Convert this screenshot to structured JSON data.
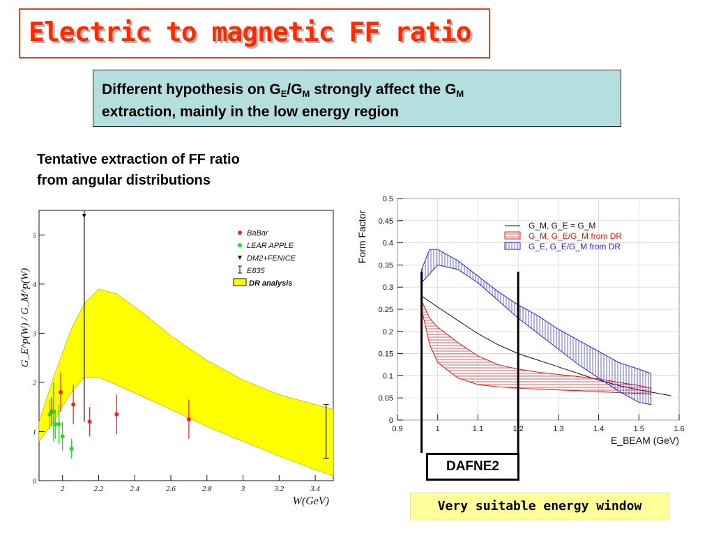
{
  "slide": {
    "title": "Electric to magnetic FF ratio",
    "info": {
      "prefix": "Different hypothesis on G",
      "sub1": "E",
      "mid": "/G",
      "sub2": "M",
      "mid2": " strongly affect the G",
      "sub3": "M",
      "line2": "extraction, mainly in the low energy region"
    },
    "caption": {
      "line1": "Tentative extraction of FF ratio",
      "line2": "from angular distributions"
    },
    "dafne_label": "DAFNE2",
    "window_label": "Very suitable energy window"
  },
  "colors": {
    "title": "#ff2a00",
    "info_bg": "#b5dede",
    "band": "#ffff00",
    "highlight": "#ffff99"
  },
  "chart_data": [
    {
      "type": "scatter",
      "ylabel": "G_E^p(W) / G_M^p(W)",
      "xlabel": "W(GeV)",
      "xlim": [
        1.87,
        3.5
      ],
      "ylim": [
        0,
        5.5
      ],
      "x_ticks": [
        "2",
        "2.2",
        "2.4",
        "2.6",
        "2.8",
        "3",
        "3.2",
        "3.4"
      ],
      "y_ticks": [
        "0",
        "1",
        "2",
        "3",
        "4",
        "5"
      ],
      "legend": [
        "BaBar",
        "LEAR APPLE",
        "DM2+FENICE",
        "E835",
        "DR analysis"
      ],
      "series": [
        {
          "name": "BaBar",
          "color": "#ff2020",
          "points": [
            {
              "x": 1.94,
              "y": 1.4,
              "err": 0.3
            },
            {
              "x": 1.99,
              "y": 1.8,
              "err": 0.4
            },
            {
              "x": 2.06,
              "y": 1.55,
              "err": 0.4
            },
            {
              "x": 2.15,
              "y": 1.2,
              "err": 0.3
            },
            {
              "x": 2.3,
              "y": 1.35,
              "err": 0.4
            },
            {
              "x": 2.7,
              "y": 1.25,
              "err": 0.4
            }
          ]
        },
        {
          "name": "LEAR APPLE",
          "color": "#22dd22",
          "points": [
            {
              "x": 1.93,
              "y": 1.35,
              "err": 0.3
            },
            {
              "x": 1.95,
              "y": 1.4,
              "err": 0.6
            },
            {
              "x": 1.96,
              "y": 1.15,
              "err": 0.3
            },
            {
              "x": 1.98,
              "y": 1.15,
              "err": 0.4
            },
            {
              "x": 2.0,
              "y": 0.9,
              "err": 0.3
            },
            {
              "x": 2.05,
              "y": 0.65,
              "err": 0.2
            }
          ]
        },
        {
          "name": "DM2+FENICE",
          "color": "#111111",
          "points": [
            {
              "x": 2.12,
              "y": 5.4,
              "err_low": 4.2,
              "err_high": 0.1
            }
          ]
        },
        {
          "name": "E835",
          "color": "#111111",
          "points": [
            {
              "x": 3.46,
              "y": 1.0,
              "err": 0.55
            }
          ]
        }
      ],
      "band": {
        "name": "DR analysis",
        "x": [
          1.87,
          1.95,
          2.05,
          2.12,
          2.2,
          2.3,
          2.45,
          2.6,
          2.8,
          3.0,
          3.2,
          3.4,
          3.5
        ],
        "upper": [
          1.2,
          2.1,
          3.1,
          3.6,
          3.9,
          3.8,
          3.4,
          2.95,
          2.45,
          2.05,
          1.75,
          1.55,
          1.45
        ],
        "lower": [
          0.8,
          1.2,
          1.8,
          2.1,
          2.1,
          1.95,
          1.7,
          1.45,
          1.1,
          0.8,
          0.5,
          0.22,
          0.1
        ]
      }
    },
    {
      "type": "line",
      "ylabel": "Form Factor",
      "xlabel": "E_BEAM (GeV)",
      "xlim": [
        0.9,
        1.6
      ],
      "ylim": [
        0,
        0.5
      ],
      "x_ticks": [
        "0.9",
        "1",
        "1.1",
        "1.2",
        "1.3",
        "1.4",
        "1.5",
        "1.6"
      ],
      "y_ticks": [
        "0",
        "0.05",
        "0.1",
        "0.15",
        "0.2",
        "0.25",
        "0.3",
        "0.35",
        "0.4",
        "0.45",
        "0.5"
      ],
      "legend": [
        "G_M, G_E = G_M",
        "G_M, G_E/G_M from DR",
        "G_E, G_E/G_M from DR"
      ],
      "series": [
        {
          "name": "G_M, G_E = G_M",
          "color": "#111111",
          "x": [
            0.96,
            1.0,
            1.05,
            1.1,
            1.15,
            1.2,
            1.25,
            1.3,
            1.35,
            1.4,
            1.45,
            1.5,
            1.58
          ],
          "y": [
            0.28,
            0.255,
            0.225,
            0.195,
            0.17,
            0.15,
            0.135,
            0.12,
            0.105,
            0.09,
            0.078,
            0.068,
            0.055
          ]
        },
        {
          "name": "G_M, G_E/G_M from DR",
          "color": "#ee1111",
          "x": [
            0.96,
            0.98,
            1.0,
            1.05,
            1.1,
            1.15,
            1.2,
            1.25,
            1.3,
            1.35,
            1.4,
            1.45,
            1.5,
            1.53
          ],
          "upper": [
            0.27,
            0.23,
            0.21,
            0.175,
            0.145,
            0.125,
            0.115,
            0.108,
            0.103,
            0.098,
            0.093,
            0.085,
            0.078,
            0.072
          ],
          "lower": [
            0.25,
            0.17,
            0.13,
            0.095,
            0.08,
            0.075,
            0.072,
            0.07,
            0.068,
            0.066,
            0.064,
            0.062,
            0.06,
            0.058
          ]
        },
        {
          "name": "G_E, G_E/G_M from DR",
          "color": "#2222dd",
          "x": [
            0.96,
            0.98,
            1.0,
            1.05,
            1.1,
            1.15,
            1.2,
            1.25,
            1.3,
            1.35,
            1.4,
            1.45,
            1.5,
            1.53
          ],
          "upper": [
            0.34,
            0.385,
            0.385,
            0.36,
            0.325,
            0.29,
            0.26,
            0.235,
            0.205,
            0.18,
            0.155,
            0.13,
            0.115,
            0.105
          ],
          "lower": [
            0.31,
            0.33,
            0.35,
            0.34,
            0.31,
            0.27,
            0.23,
            0.195,
            0.16,
            0.125,
            0.095,
            0.065,
            0.04,
            0.035
          ]
        }
      ],
      "window": [
        0.96,
        1.2
      ]
    }
  ]
}
